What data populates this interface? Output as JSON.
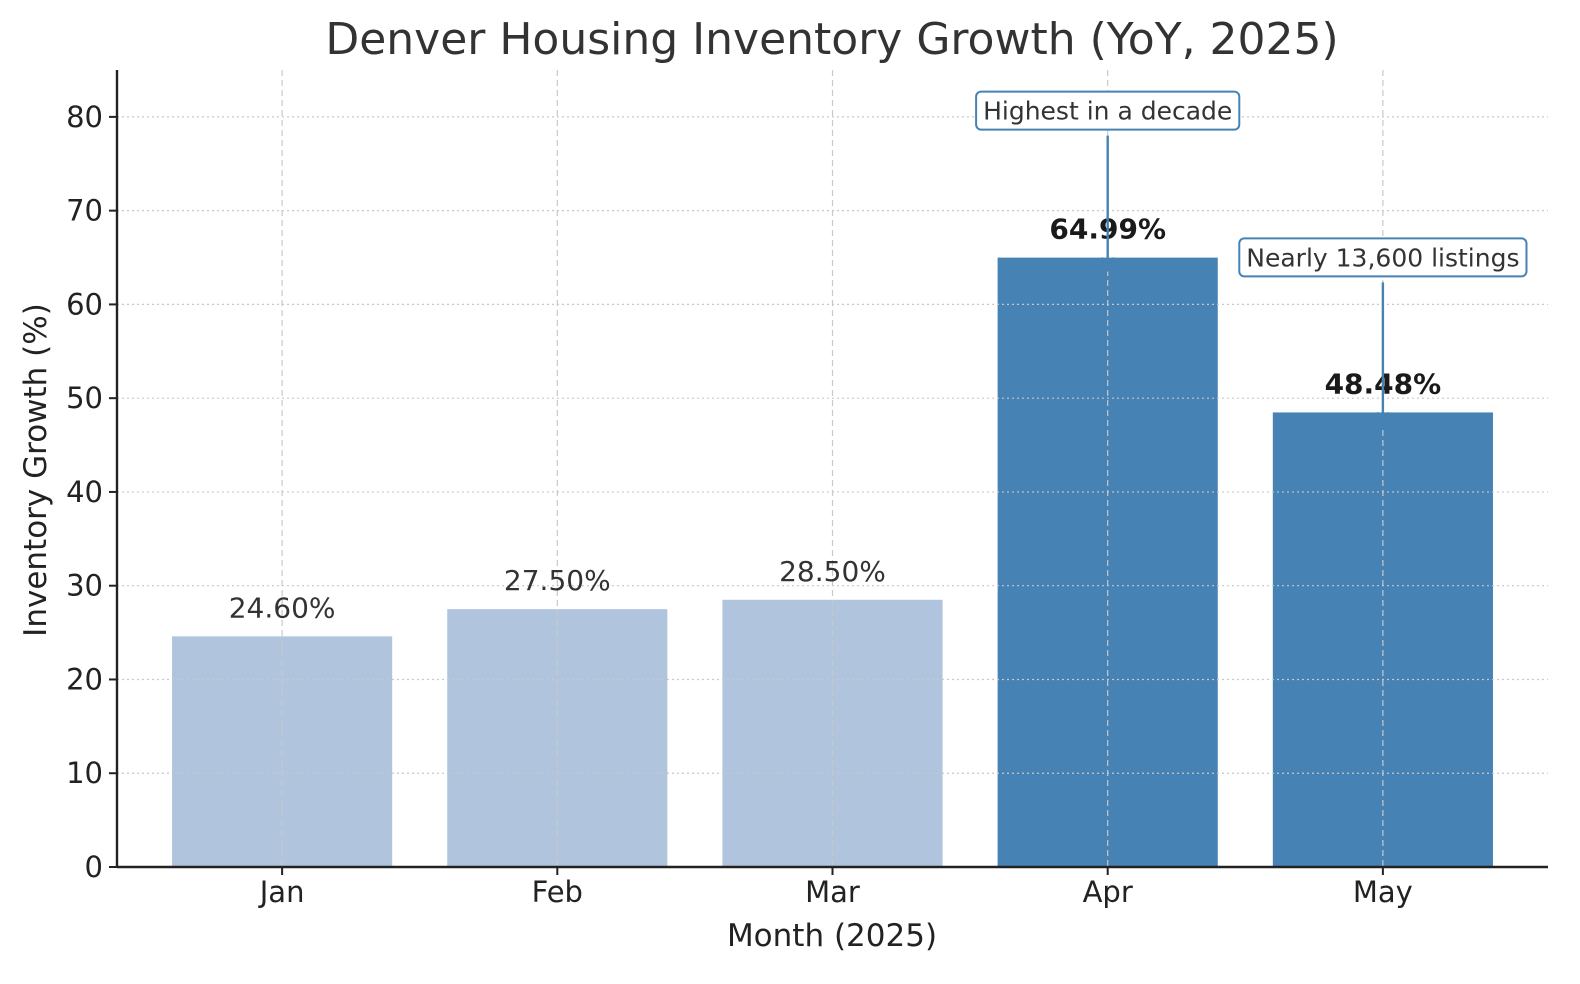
{
  "chart_data": {
    "type": "bar",
    "title": "Denver Housing Inventory Growth (YoY, 2025)",
    "xlabel": "Month (2025)",
    "ylabel": "Inventory Growth (%)",
    "ylim": [
      0,
      85
    ],
    "yticks": [
      0,
      10,
      20,
      30,
      40,
      50,
      60,
      70,
      80
    ],
    "categories": [
      "Jan",
      "Feb",
      "Mar",
      "Apr",
      "May"
    ],
    "values": [
      24.6,
      27.5,
      28.5,
      64.99,
      48.48
    ],
    "value_labels": [
      "24.60%",
      "27.50%",
      "28.50%",
      "64.99%",
      "48.48%"
    ],
    "highlighted": [
      false,
      false,
      false,
      true,
      true
    ],
    "colors": {
      "normal_bar": "#b0c4de",
      "highlight_bar": "#4682b4",
      "annotation": "#4682b4",
      "text": "#333333",
      "bold_label": "#1a1a1a",
      "axis": "#222222",
      "grid": "#c8c8c8"
    },
    "grid": true,
    "annotations": [
      {
        "text": "Highest in a decade",
        "category": "Apr",
        "target_value": 64.99
      },
      {
        "text": "Nearly 13,600 listings",
        "category": "May",
        "target_value": 48.48
      }
    ]
  }
}
